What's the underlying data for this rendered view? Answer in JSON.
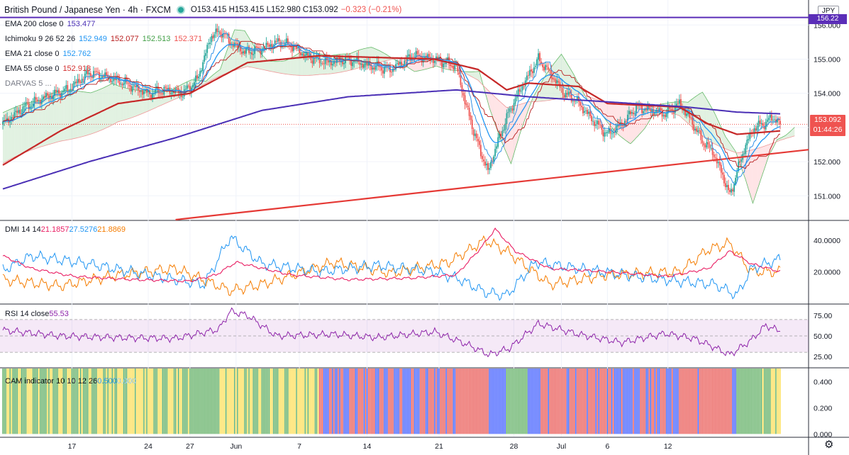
{
  "header": {
    "symbol": "British Pound / Japanese Yen · 4h · FXCM",
    "ohlc": "O153.415 H153.415 L152.980 C153.092",
    "change": "−0.323 (−0.21%)"
  },
  "legend": [
    {
      "name": "EMA 200 close 0",
      "values": [
        "153.477"
      ],
      "colors": [
        "#4a2fb5"
      ]
    },
    {
      "name": "Ichimoku 9 26 52 26",
      "values": [
        "152.949",
        "152.077",
        "152.513",
        "152.371"
      ],
      "colors": [
        "#2196f3",
        "#b71c1c",
        "#43a047",
        "#ef5350"
      ]
    },
    {
      "name": "EMA 21 close 0",
      "values": [
        "152.762"
      ],
      "colors": [
        "#2196f3"
      ]
    },
    {
      "name": "EMA 55 close 0",
      "values": [
        "152.918"
      ],
      "colors": [
        "#d32f2f"
      ]
    },
    {
      "name": "DARVAS 5 ...",
      "values": [],
      "colors": []
    }
  ],
  "currency": "JPY",
  "level_badge": "156.22",
  "price_badge": {
    "price": "153.092",
    "countdown": "01:44:26"
  },
  "dmi_label": {
    "name": "DMI 14 14",
    "values": [
      "21.1857",
      "27.5276",
      "21.8869"
    ],
    "colors": [
      "#e91e63",
      "#2196f3",
      "#f57c00"
    ]
  },
  "rsi_label": {
    "name": "RSI 14 close",
    "values": [
      "55.53"
    ],
    "colors": [
      "#8e24aa"
    ]
  },
  "cam_label": {
    "name": "CAM indicator 10 10 12 26",
    "values": [
      "0.500",
      "0.000"
    ],
    "colors": [
      "#2196f3",
      "#90caf9"
    ]
  },
  "colors": {
    "up": "#26a69a",
    "down": "#ef5350",
    "ema200": "#4a2fb5",
    "ema21": "#2196f3",
    "ema55": "#c62828",
    "trend": "#e53935",
    "cloud_green": "#c8e6c9",
    "cloud_red": "#ffcdd2",
    "dmi_plus": "#2196f3",
    "dmi_minus": "#f57c00",
    "adx": "#e91e63",
    "rsi": "#8e24aa"
  },
  "chart_data": {
    "type": "candlestick",
    "timeframe": "4h",
    "x_ticks": [
      "17",
      "24",
      "27",
      "Jun",
      "7",
      "14",
      "21",
      "28",
      "Jul",
      "6",
      "12"
    ],
    "price_axis": {
      "ticks": [
        151.0,
        152.0,
        153.0,
        154.0,
        155.0,
        156.0
      ],
      "range": [
        150.3,
        156.4
      ]
    },
    "dmi_axis": {
      "ticks": [
        20.0,
        40.0
      ]
    },
    "rsi_axis": {
      "ticks": [
        25.0,
        50.0,
        75.0
      ],
      "band": [
        30,
        70
      ]
    },
    "cam_axis": {
      "ticks": [
        0.0,
        0.2,
        0.4
      ]
    },
    "horizontal_level": 156.22,
    "last_price": 153.092,
    "close_anchors": [
      [
        0,
        153.1
      ],
      [
        15,
        153.6
      ],
      [
        30,
        153.9
      ],
      [
        45,
        154.1
      ],
      [
        60,
        154.6
      ],
      [
        70,
        154.5
      ],
      [
        85,
        154.3
      ],
      [
        100,
        154.0
      ],
      [
        115,
        154.1
      ],
      [
        125,
        154.0
      ],
      [
        135,
        154.4
      ],
      [
        145,
        155.7
      ],
      [
        152,
        155.8
      ],
      [
        158,
        155.5
      ],
      [
        168,
        155.2
      ],
      [
        180,
        155.3
      ],
      [
        190,
        155.5
      ],
      [
        200,
        155.4
      ],
      [
        210,
        155.1
      ],
      [
        225,
        154.9
      ],
      [
        240,
        155.0
      ],
      [
        255,
        154.8
      ],
      [
        270,
        154.7
      ],
      [
        285,
        155.1
      ],
      [
        300,
        155.0
      ],
      [
        315,
        154.8
      ],
      [
        322,
        153.6
      ],
      [
        330,
        152.5
      ],
      [
        337,
        151.7
      ],
      [
        344,
        152.6
      ],
      [
        352,
        153.5
      ],
      [
        362,
        154.3
      ],
      [
        372,
        155.0
      ],
      [
        380,
        154.6
      ],
      [
        390,
        154.0
      ],
      [
        398,
        153.8
      ],
      [
        410,
        153.2
      ],
      [
        420,
        152.8
      ],
      [
        430,
        153.1
      ],
      [
        440,
        153.6
      ],
      [
        450,
        153.5
      ],
      [
        460,
        153.4
      ],
      [
        470,
        153.7
      ],
      [
        478,
        153.2
      ],
      [
        486,
        152.6
      ],
      [
        493,
        152.3
      ],
      [
        500,
        151.6
      ],
      [
        505,
        151.0
      ],
      [
        510,
        151.7
      ],
      [
        516,
        152.5
      ],
      [
        522,
        153.0
      ],
      [
        528,
        153.1
      ],
      [
        535,
        153.3
      ],
      [
        540,
        153.09
      ]
    ],
    "ema200_anchors": [
      [
        0,
        151.2
      ],
      [
        60,
        152.0
      ],
      [
        120,
        152.7
      ],
      [
        180,
        153.5
      ],
      [
        240,
        153.9
      ],
      [
        315,
        154.1
      ],
      [
        365,
        153.9
      ],
      [
        420,
        153.75
      ],
      [
        475,
        153.6
      ],
      [
        510,
        153.45
      ],
      [
        540,
        153.4
      ]
    ],
    "ema55_anchors": [
      [
        0,
        151.9
      ],
      [
        40,
        152.9
      ],
      [
        80,
        153.7
      ],
      [
        130,
        154.0
      ],
      [
        170,
        154.9
      ],
      [
        220,
        155.1
      ],
      [
        300,
        155.0
      ],
      [
        330,
        154.7
      ],
      [
        350,
        154.1
      ],
      [
        365,
        154.3
      ],
      [
        400,
        154.2
      ],
      [
        420,
        153.7
      ],
      [
        470,
        153.6
      ],
      [
        490,
        153.1
      ],
      [
        510,
        152.8
      ],
      [
        540,
        152.9
      ]
    ],
    "trendline": {
      "from": [
        120,
        150.3
      ],
      "to": [
        560,
        152.35
      ]
    },
    "dmi_adx_anchors": [
      [
        0,
        30
      ],
      [
        20,
        22
      ],
      [
        50,
        17
      ],
      [
        90,
        15
      ],
      [
        130,
        14
      ],
      [
        148,
        18
      ],
      [
        162,
        26
      ],
      [
        200,
        18
      ],
      [
        240,
        15
      ],
      [
        285,
        16
      ],
      [
        315,
        18
      ],
      [
        332,
        35
      ],
      [
        342,
        47
      ],
      [
        356,
        33
      ],
      [
        380,
        22
      ],
      [
        420,
        20
      ],
      [
        462,
        17
      ],
      [
        490,
        22
      ],
      [
        505,
        33
      ],
      [
        520,
        25
      ],
      [
        540,
        20
      ]
    ],
    "dmi_plus_anchors": [
      [
        0,
        21
      ],
      [
        20,
        30
      ],
      [
        60,
        25
      ],
      [
        100,
        18
      ],
      [
        140,
        12
      ],
      [
        158,
        42
      ],
      [
        180,
        25
      ],
      [
        220,
        20
      ],
      [
        260,
        24
      ],
      [
        300,
        20
      ],
      [
        318,
        15
      ],
      [
        335,
        7
      ],
      [
        350,
        5
      ],
      [
        370,
        26
      ],
      [
        400,
        22
      ],
      [
        440,
        17
      ],
      [
        470,
        14
      ],
      [
        495,
        12
      ],
      [
        510,
        5
      ],
      [
        520,
        22
      ],
      [
        540,
        28
      ]
    ],
    "dmi_minus_anchors": [
      [
        0,
        15
      ],
      [
        40,
        11
      ],
      [
        80,
        18
      ],
      [
        120,
        22
      ],
      [
        158,
        8
      ],
      [
        180,
        12
      ],
      [
        230,
        26
      ],
      [
        270,
        19
      ],
      [
        310,
        26
      ],
      [
        335,
        40
      ],
      [
        350,
        33
      ],
      [
        380,
        12
      ],
      [
        420,
        18
      ],
      [
        470,
        20
      ],
      [
        490,
        34
      ],
      [
        505,
        38
      ],
      [
        520,
        20
      ],
      [
        540,
        20
      ]
    ],
    "rsi_anchors": [
      [
        0,
        57
      ],
      [
        40,
        50
      ],
      [
        80,
        48
      ],
      [
        120,
        47
      ],
      [
        150,
        58
      ],
      [
        158,
        80
      ],
      [
        170,
        75
      ],
      [
        190,
        50
      ],
      [
        230,
        52
      ],
      [
        260,
        48
      ],
      [
        300,
        55
      ],
      [
        322,
        40
      ],
      [
        338,
        27
      ],
      [
        352,
        35
      ],
      [
        372,
        65
      ],
      [
        400,
        52
      ],
      [
        430,
        42
      ],
      [
        460,
        53
      ],
      [
        480,
        47
      ],
      [
        492,
        38
      ],
      [
        505,
        27
      ],
      [
        520,
        45
      ],
      [
        530,
        63
      ],
      [
        540,
        55.53
      ]
    ],
    "cam_colors": [
      "#43a047",
      "#fdd835",
      "#e53935",
      "#1e40ff"
    ]
  }
}
